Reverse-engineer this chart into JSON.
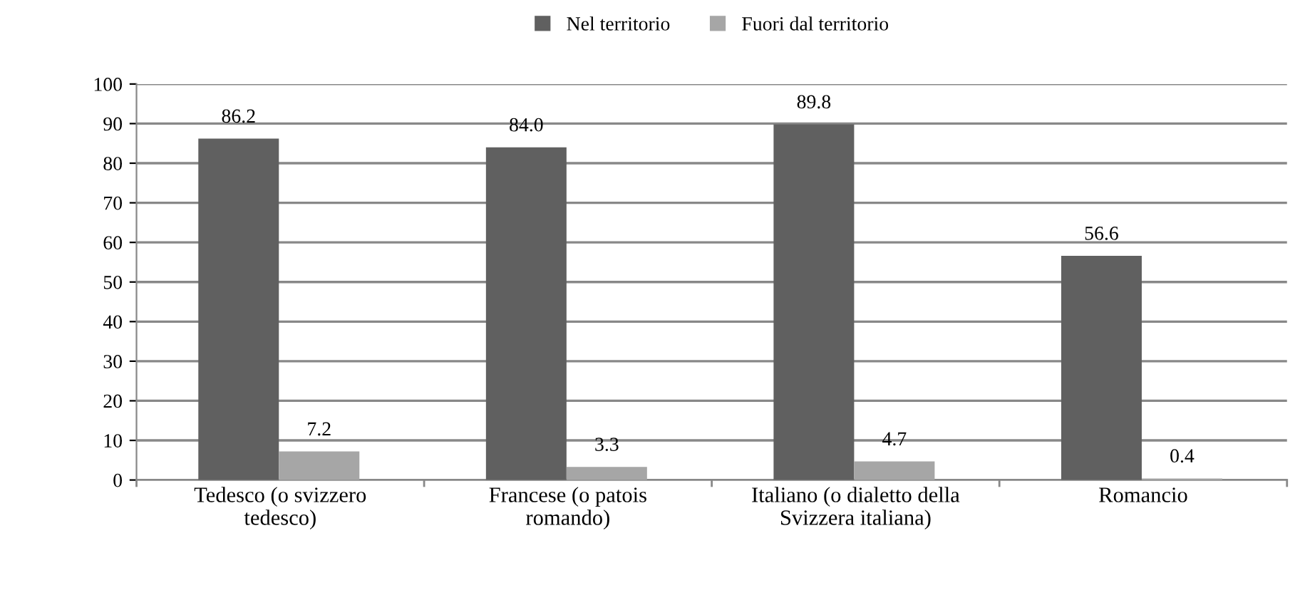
{
  "chart_data": {
    "type": "bar",
    "categories": [
      "Tedesco (o svizzero\ntedesco)",
      "Francese (o patois\nromando)",
      "Italiano (o dialetto della\nSvizzera italiana)",
      "Romancio"
    ],
    "series": [
      {
        "name": "Nel territorio",
        "color": "#606060",
        "values": [
          86.2,
          84.0,
          89.8,
          56.6
        ],
        "value_labels": [
          "86.2",
          "84.0",
          "89.8",
          "56.6"
        ]
      },
      {
        "name": "Fuori dal territorio",
        "color": "#a6a6a6",
        "values": [
          7.2,
          3.3,
          4.7,
          0.4
        ],
        "value_labels": [
          "7.2",
          "3.3",
          "4.7",
          "0.4"
        ]
      }
    ],
    "ylim": [
      0,
      100
    ],
    "yticks": [
      0,
      10,
      20,
      30,
      40,
      50,
      60,
      70,
      80,
      90,
      100
    ],
    "grid": "y",
    "legend": "top"
  }
}
